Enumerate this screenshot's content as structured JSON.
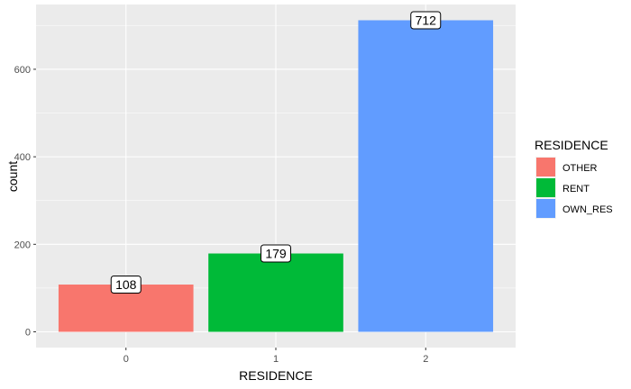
{
  "chart_data": {
    "type": "bar",
    "categories": [
      "0",
      "1",
      "2"
    ],
    "values": [
      108,
      179,
      712
    ],
    "series_labels": [
      "OTHER",
      "RENT",
      "OWN_RES"
    ],
    "colors": [
      "#F8766D",
      "#00BA38",
      "#619CFF"
    ],
    "data_labels": [
      "108",
      "179",
      "712"
    ],
    "xlabel": "RESIDENCE",
    "ylabel": "count",
    "ylim": [
      -36,
      748
    ],
    "yticks": [
      0,
      200,
      400,
      600
    ],
    "ytick_labels": [
      "0",
      "200",
      "400",
      "600"
    ],
    "grid": true,
    "legend": {
      "title": "RESIDENCE",
      "position": "right",
      "items": [
        "OTHER",
        "RENT",
        "OWN_RES"
      ]
    },
    "background_color": "#EBEBEB",
    "grid_color": "#FFFFFF"
  }
}
